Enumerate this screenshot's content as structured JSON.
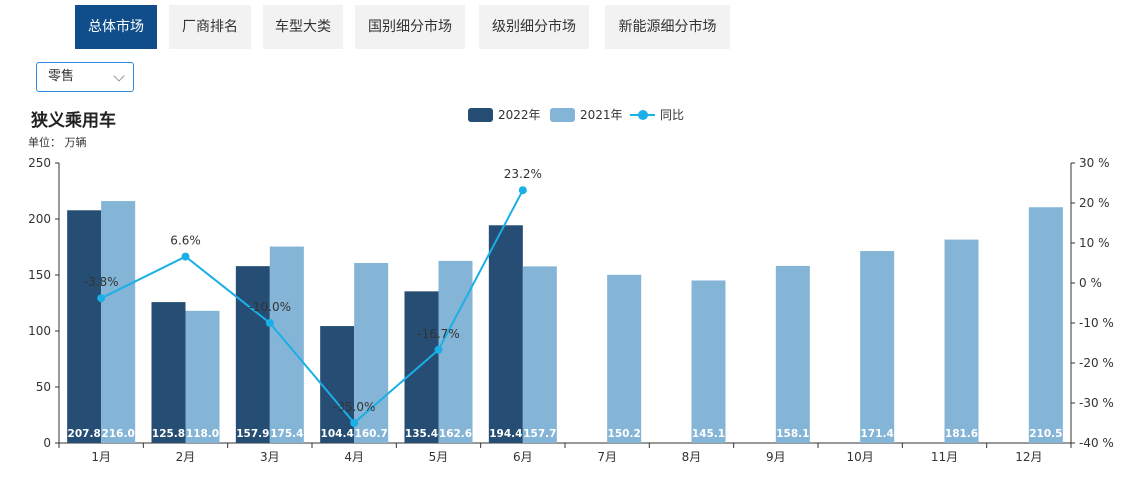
{
  "tabs": [
    {
      "label": "总体市场",
      "active": true
    },
    {
      "label": "厂商排名",
      "active": false
    },
    {
      "label": "车型大类",
      "active": false
    },
    {
      "label": "国别细分市场",
      "active": false
    },
    {
      "label": "级别细分市场",
      "active": false
    },
    {
      "label": "新能源细分市场",
      "active": false
    }
  ],
  "selector": {
    "value": "零售"
  },
  "colors": {
    "tab_active": "#104e8b",
    "series_2022": "#264d73",
    "series_2021": "#84b4d6",
    "yoy_line": "#1aafe6"
  },
  "chart_data": {
    "type": "bar",
    "title": "狭义乘用车",
    "unit_label": "单位： 万辆",
    "categories": [
      "1月",
      "2月",
      "3月",
      "4月",
      "5月",
      "6月",
      "7月",
      "8月",
      "9月",
      "10月",
      "11月",
      "12月"
    ],
    "series": [
      {
        "name": "2022年",
        "type": "bar",
        "values": [
          207.8,
          125.8,
          157.9,
          104.4,
          135.4,
          194.4,
          null,
          null,
          null,
          null,
          null,
          null
        ]
      },
      {
        "name": "2021年",
        "type": "bar",
        "values": [
          216.0,
          118.0,
          175.4,
          160.7,
          162.6,
          157.7,
          150.2,
          145.1,
          158.1,
          171.4,
          181.6,
          210.5
        ]
      },
      {
        "name": "同比",
        "type": "line",
        "axis": "right",
        "values": [
          -3.8,
          6.6,
          -10.0,
          -35.0,
          -16.7,
          23.2,
          null,
          null,
          null,
          null,
          null,
          null
        ]
      }
    ],
    "yoy_labels": [
      "-3.8%",
      "6.6%",
      "-10.0%",
      "-35.0%",
      "-16.7%",
      "23.2%"
    ],
    "y_left": {
      "min": 0,
      "max": 250,
      "ticks": [
        "0",
        "50",
        "100",
        "150",
        "200",
        "250"
      ]
    },
    "y_right": {
      "min": -40,
      "max": 30,
      "ticks": [
        "-40 %",
        "-30 %",
        "-20 %",
        "-10 %",
        "0 %",
        "10 %",
        "20 %",
        "30 %"
      ]
    },
    "legend_position": "top-center",
    "grid": false
  }
}
